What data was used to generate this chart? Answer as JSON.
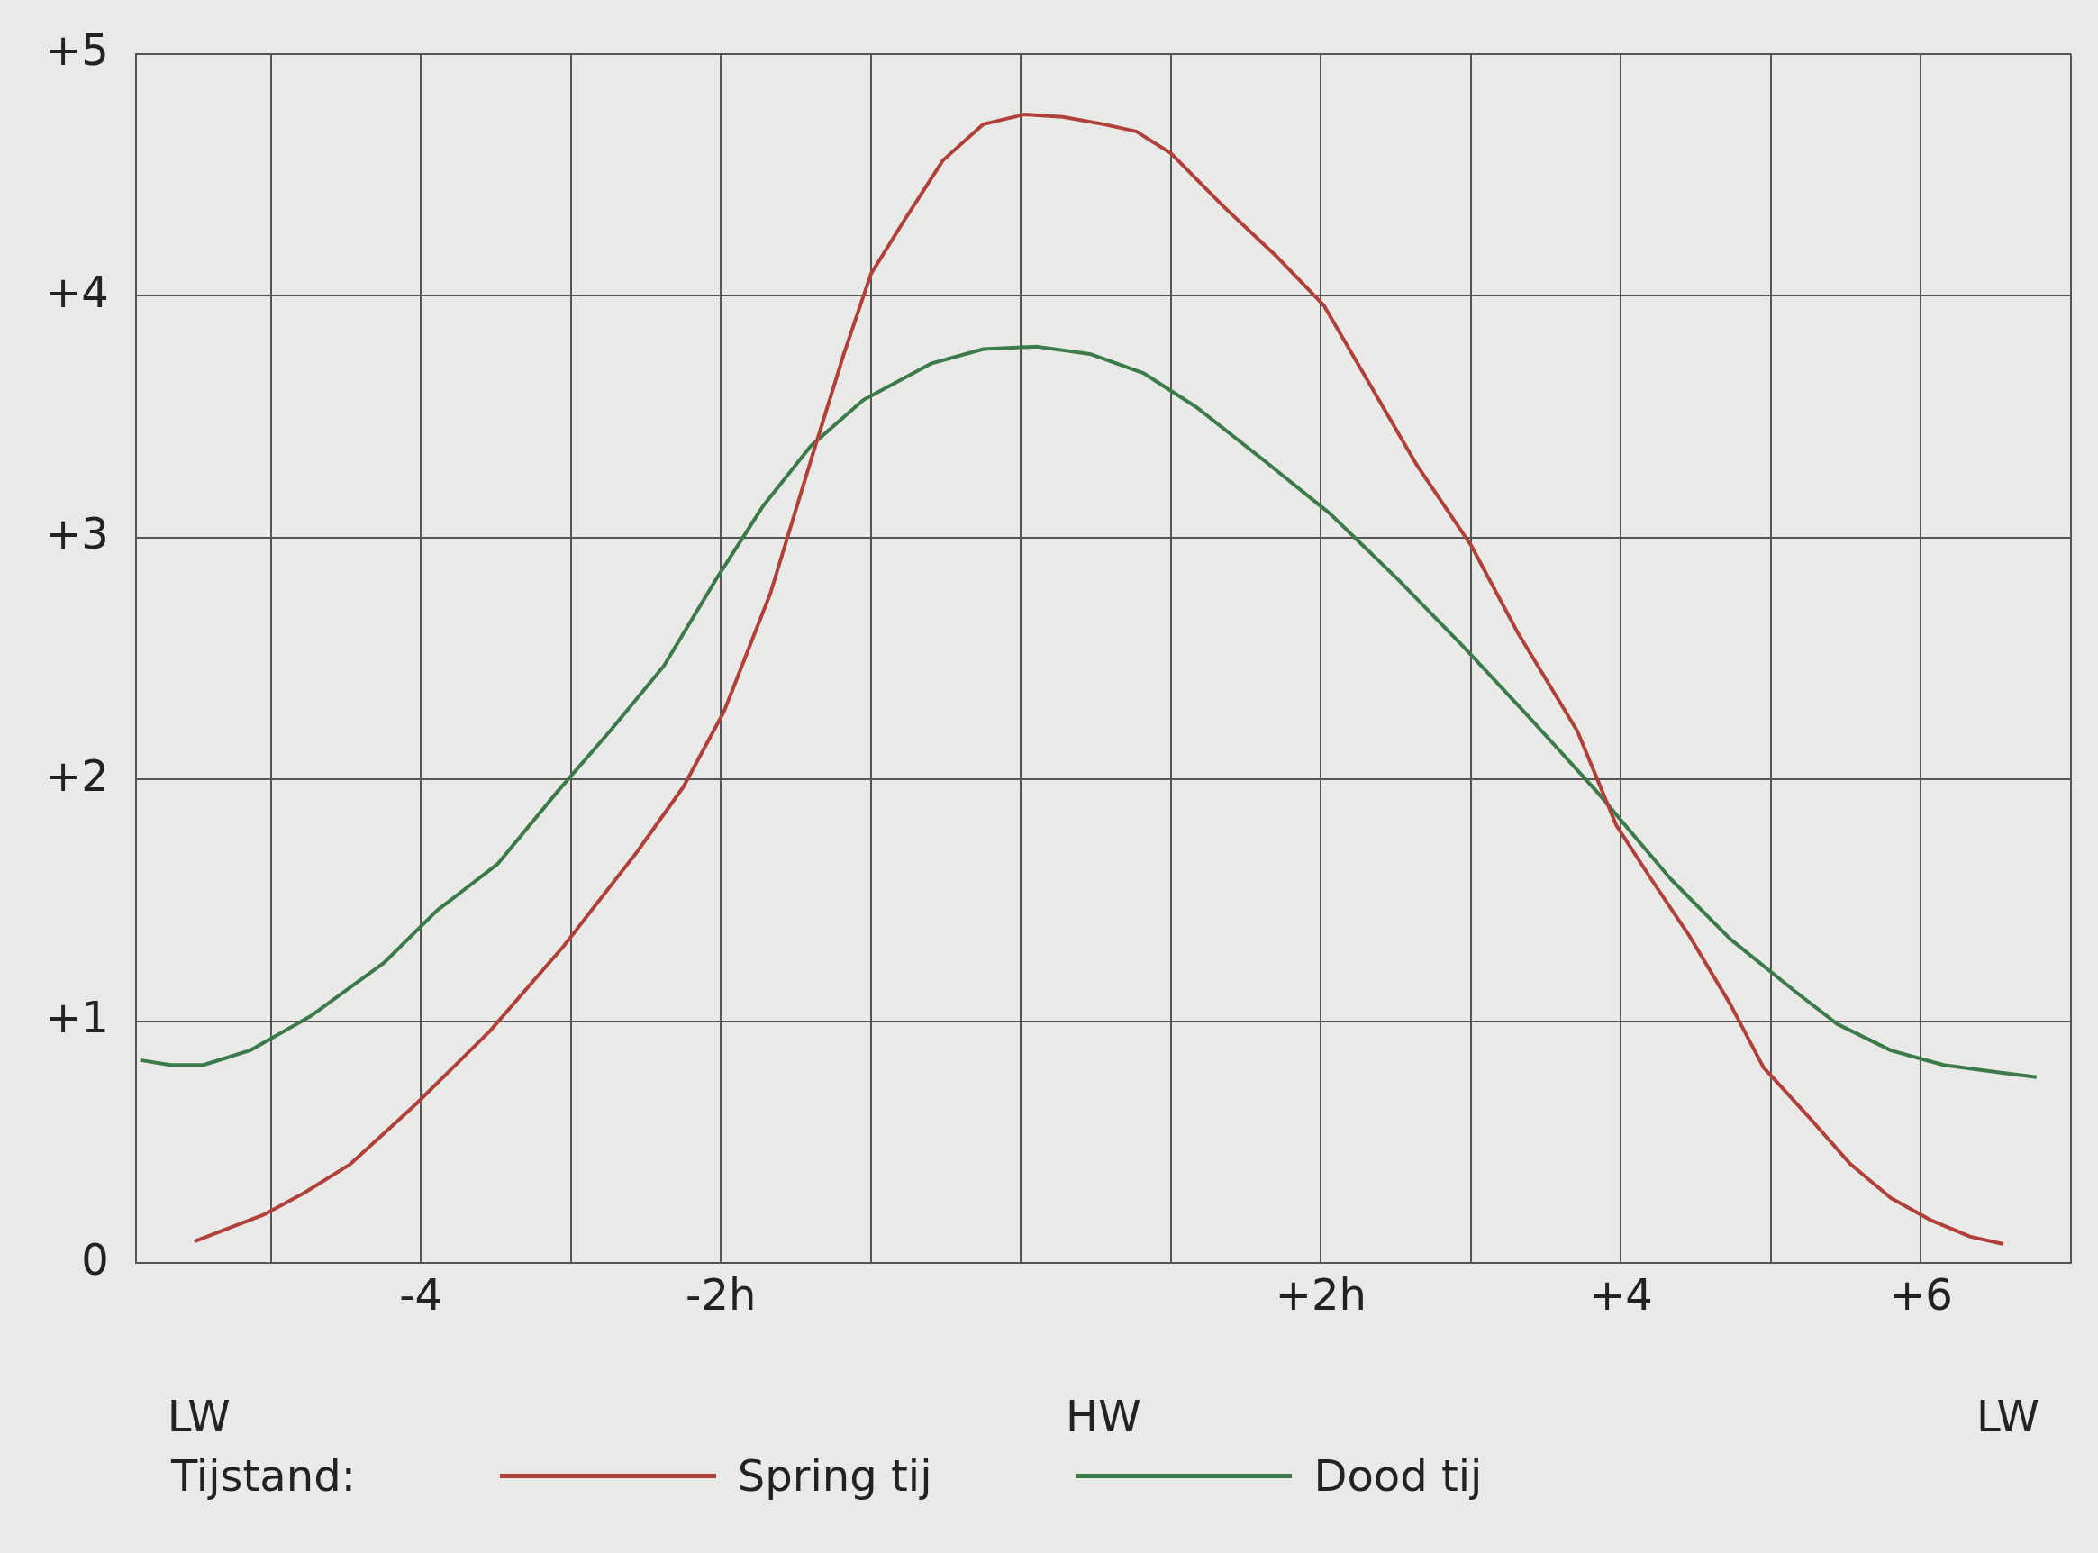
{
  "chart_data": {
    "type": "line",
    "legend_title": "Tijstand:",
    "legend": "bottom",
    "grid": true,
    "marker": "none",
    "line_style": "solid",
    "xlim": [
      -5.9,
      7
    ],
    "ylim": [
      0,
      5
    ],
    "xticks": [
      {
        "value": -5,
        "label": null
      },
      {
        "value": -4,
        "label": "-4"
      },
      {
        "value": -3,
        "label": null
      },
      {
        "value": -2,
        "label": "-2h"
      },
      {
        "value": -1,
        "label": null
      },
      {
        "value": 0,
        "label": null
      },
      {
        "value": 1,
        "label": null
      },
      {
        "value": 2,
        "label": "+2h"
      },
      {
        "value": 3,
        "label": null
      },
      {
        "value": 4,
        "label": "+4"
      },
      {
        "value": 5,
        "label": null
      },
      {
        "value": 6,
        "label": "+6"
      },
      {
        "value": 7,
        "label": null
      }
    ],
    "yticks": [
      0,
      {
        "value": 1,
        "label": "+1"
      },
      {
        "value": 2,
        "label": "+2"
      },
      {
        "value": 3,
        "label": "+3"
      },
      {
        "value": 4,
        "label": "+4"
      },
      {
        "value": 5,
        "label": "+5"
      }
    ],
    "annotations": [
      "LW",
      "HW",
      "LW"
    ],
    "series": [
      {
        "name": "Spring tij",
        "color": "#b0403a",
        "x": [
          -5.51,
          -5.05,
          -4.78,
          -4.47,
          -4.03,
          -3.54,
          -3.05,
          -2.56,
          -2.25,
          -1.98,
          -1.67,
          -1.4,
          -1.18,
          -1.0,
          -0.78,
          -0.52,
          -0.25,
          0.02,
          0.28,
          0.55,
          0.77,
          1.0,
          1.35,
          1.71,
          2.02,
          2.33,
          2.64,
          3.0,
          3.31,
          3.71,
          3.97,
          4.2,
          4.46,
          4.73,
          4.95,
          5.26,
          5.53,
          5.8,
          6.06,
          6.33,
          6.55
        ],
        "values": [
          0.09,
          0.2,
          0.29,
          0.41,
          0.66,
          0.96,
          1.31,
          1.7,
          1.97,
          2.28,
          2.77,
          3.32,
          3.76,
          4.09,
          4.31,
          4.56,
          4.71,
          4.75,
          4.74,
          4.71,
          4.68,
          4.59,
          4.37,
          4.16,
          3.96,
          3.63,
          3.3,
          2.97,
          2.61,
          2.2,
          1.81,
          1.59,
          1.35,
          1.07,
          0.81,
          0.6,
          0.41,
          0.27,
          0.18,
          0.11,
          0.08
        ]
      },
      {
        "name": "Dood tij",
        "color": "#3d7a4a",
        "x": [
          -5.87,
          -5.67,
          -5.45,
          -5.14,
          -4.74,
          -4.25,
          -3.89,
          -3.49,
          -3.09,
          -2.74,
          -2.38,
          -2.03,
          -1.72,
          -1.4,
          -1.05,
          -0.6,
          -0.25,
          0.11,
          0.46,
          0.82,
          1.17,
          1.62,
          2.06,
          2.51,
          2.95,
          3.4,
          3.84,
          4.33,
          4.73,
          5.17,
          5.44,
          5.8,
          6.15,
          6.51,
          6.77
        ],
        "values": [
          0.84,
          0.82,
          0.82,
          0.88,
          1.02,
          1.24,
          1.46,
          1.65,
          1.95,
          2.2,
          2.47,
          2.83,
          3.13,
          3.38,
          3.57,
          3.72,
          3.78,
          3.79,
          3.76,
          3.68,
          3.54,
          3.32,
          3.1,
          2.83,
          2.55,
          2.25,
          1.95,
          1.59,
          1.34,
          1.12,
          0.99,
          0.88,
          0.82,
          0.79,
          0.77
        ]
      }
    ]
  }
}
